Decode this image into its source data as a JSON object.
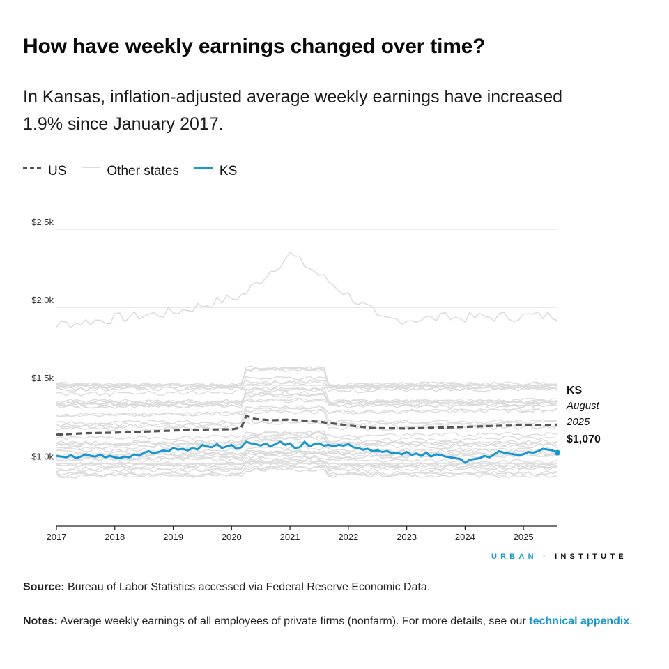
{
  "header": {
    "title": "How have weekly earnings changed over time?",
    "subtitle": "In Kansas, inflation-adjusted average weekly earnings have increased 1.9% since January 2017."
  },
  "legend": {
    "items": [
      {
        "label": "US",
        "style": "dashed",
        "color": "#555555"
      },
      {
        "label": "Other states",
        "style": "solid",
        "color": "#dcdcdc"
      },
      {
        "label": "KS",
        "style": "solid",
        "color": "#1696d2"
      }
    ]
  },
  "annotation": {
    "state": "KS",
    "month": "August",
    "year": "2025",
    "value": "$1,070"
  },
  "branding": {
    "urban": "URBAN",
    "separator": "·",
    "institute": "INSTITUTE"
  },
  "footer": {
    "source_label": "Source:",
    "source_text": " Bureau of Labor Statistics accessed via Federal Reserve Economic Data.",
    "notes_label": "Notes:",
    "notes_text": " Average weekly earnings of all employees of private firms (nonfarm). For more details, see our ",
    "notes_link": "technical appendix",
    "notes_end": "."
  },
  "colors": {
    "ks": "#1696d2",
    "us": "#555555",
    "other_states": "#dcdcdc",
    "gridline": "#e2e2e2",
    "brand_blue": "#1696d2"
  },
  "chart_data": {
    "type": "line",
    "title": "How have weekly earnings changed over time?",
    "xlabel": "",
    "ylabel": "",
    "x_ticks": [
      "2017",
      "2018",
      "2019",
      "2020",
      "2021",
      "2022",
      "2023",
      "2024",
      "2025"
    ],
    "y_ticks": [
      {
        "value": 1000,
        "label": "$1.0k"
      },
      {
        "value": 1500,
        "label": "$1.5k"
      },
      {
        "value": 2000,
        "label": "$2.0k"
      },
      {
        "value": 2500,
        "label": "$2.5k"
      }
    ],
    "xlim": [
      "2017-01",
      "2025-08"
    ],
    "ylim": [
      600,
      2500
    ],
    "grid": true,
    "legend_position": "top-left",
    "series": [
      {
        "name": "US",
        "style": "dashed",
        "points": [
          [
            "2017-01",
            1185
          ],
          [
            "2017-04",
            1190
          ],
          [
            "2017-07",
            1195
          ],
          [
            "2018-01",
            1198
          ],
          [
            "2018-07",
            1205
          ],
          [
            "2019-01",
            1212
          ],
          [
            "2019-07",
            1218
          ],
          [
            "2020-01",
            1220
          ],
          [
            "2020-03",
            1230
          ],
          [
            "2020-04",
            1305
          ],
          [
            "2020-06",
            1285
          ],
          [
            "2020-09",
            1278
          ],
          [
            "2021-01",
            1282
          ],
          [
            "2021-07",
            1268
          ],
          [
            "2022-01",
            1245
          ],
          [
            "2022-06",
            1228
          ],
          [
            "2023-01",
            1225
          ],
          [
            "2023-07",
            1230
          ],
          [
            "2024-01",
            1235
          ],
          [
            "2024-07",
            1242
          ],
          [
            "2025-01",
            1245
          ],
          [
            "2025-08",
            1250
          ]
        ]
      },
      {
        "name": "KS",
        "style": "solid",
        "points": [
          [
            "2017-01",
            1050
          ],
          [
            "2017-02",
            1045
          ],
          [
            "2017-03",
            1040
          ],
          [
            "2017-04",
            1055
          ],
          [
            "2017-05",
            1035
          ],
          [
            "2017-06",
            1045
          ],
          [
            "2017-07",
            1060
          ],
          [
            "2017-08",
            1050
          ],
          [
            "2017-09",
            1045
          ],
          [
            "2017-10",
            1060
          ],
          [
            "2017-11",
            1040
          ],
          [
            "2017-12",
            1050
          ],
          [
            "2018-01",
            1040
          ],
          [
            "2018-02",
            1035
          ],
          [
            "2018-03",
            1045
          ],
          [
            "2018-04",
            1040
          ],
          [
            "2018-05",
            1060
          ],
          [
            "2018-06",
            1050
          ],
          [
            "2018-07",
            1070
          ],
          [
            "2018-08",
            1080
          ],
          [
            "2018-09",
            1065
          ],
          [
            "2018-10",
            1075
          ],
          [
            "2018-11",
            1085
          ],
          [
            "2018-12",
            1078
          ],
          [
            "2019-01",
            1100
          ],
          [
            "2019-02",
            1090
          ],
          [
            "2019-03",
            1095
          ],
          [
            "2019-04",
            1085
          ],
          [
            "2019-05",
            1100
          ],
          [
            "2019-06",
            1090
          ],
          [
            "2019-07",
            1120
          ],
          [
            "2019-08",
            1110
          ],
          [
            "2019-09",
            1105
          ],
          [
            "2019-10",
            1125
          ],
          [
            "2019-11",
            1100
          ],
          [
            "2019-12",
            1110
          ],
          [
            "2020-01",
            1120
          ],
          [
            "2020-02",
            1095
          ],
          [
            "2020-03",
            1105
          ],
          [
            "2020-04",
            1140
          ],
          [
            "2020-05",
            1130
          ],
          [
            "2020-06",
            1125
          ],
          [
            "2020-07",
            1115
          ],
          [
            "2020-08",
            1130
          ],
          [
            "2020-09",
            1110
          ],
          [
            "2020-10",
            1125
          ],
          [
            "2020-11",
            1140
          ],
          [
            "2020-12",
            1120
          ],
          [
            "2021-01",
            1130
          ],
          [
            "2021-02",
            1100
          ],
          [
            "2021-03",
            1105
          ],
          [
            "2021-04",
            1140
          ],
          [
            "2021-05",
            1110
          ],
          [
            "2021-06",
            1125
          ],
          [
            "2021-07",
            1130
          ],
          [
            "2021-08",
            1115
          ],
          [
            "2021-09",
            1120
          ],
          [
            "2021-10",
            1110
          ],
          [
            "2021-11",
            1120
          ],
          [
            "2021-12",
            1115
          ],
          [
            "2022-01",
            1125
          ],
          [
            "2022-02",
            1105
          ],
          [
            "2022-03",
            1100
          ],
          [
            "2022-04",
            1090
          ],
          [
            "2022-05",
            1095
          ],
          [
            "2022-06",
            1080
          ],
          [
            "2022-07",
            1085
          ],
          [
            "2022-08",
            1075
          ],
          [
            "2022-09",
            1080
          ],
          [
            "2022-10",
            1065
          ],
          [
            "2022-11",
            1070
          ],
          [
            "2022-12",
            1060
          ],
          [
            "2023-01",
            1075
          ],
          [
            "2023-02",
            1055
          ],
          [
            "2023-03",
            1065
          ],
          [
            "2023-04",
            1050
          ],
          [
            "2023-05",
            1070
          ],
          [
            "2023-06",
            1045
          ],
          [
            "2023-07",
            1060
          ],
          [
            "2023-08",
            1055
          ],
          [
            "2023-09",
            1045
          ],
          [
            "2023-10",
            1040
          ],
          [
            "2023-11",
            1035
          ],
          [
            "2023-12",
            1030
          ],
          [
            "2024-01",
            1005
          ],
          [
            "2024-02",
            1025
          ],
          [
            "2024-03",
            1030
          ],
          [
            "2024-04",
            1035
          ],
          [
            "2024-05",
            1050
          ],
          [
            "2024-06",
            1040
          ],
          [
            "2024-07",
            1060
          ],
          [
            "2024-08",
            1080
          ],
          [
            "2024-09",
            1070
          ],
          [
            "2024-10",
            1065
          ],
          [
            "2024-11",
            1060
          ],
          [
            "2024-12",
            1055
          ],
          [
            "2025-01",
            1060
          ],
          [
            "2025-02",
            1075
          ],
          [
            "2025-03",
            1070
          ],
          [
            "2025-04",
            1080
          ],
          [
            "2025-05",
            1095
          ],
          [
            "2025-06",
            1090
          ],
          [
            "2025-07",
            1085
          ],
          [
            "2025-08",
            1070
          ]
        ]
      }
    ]
  }
}
